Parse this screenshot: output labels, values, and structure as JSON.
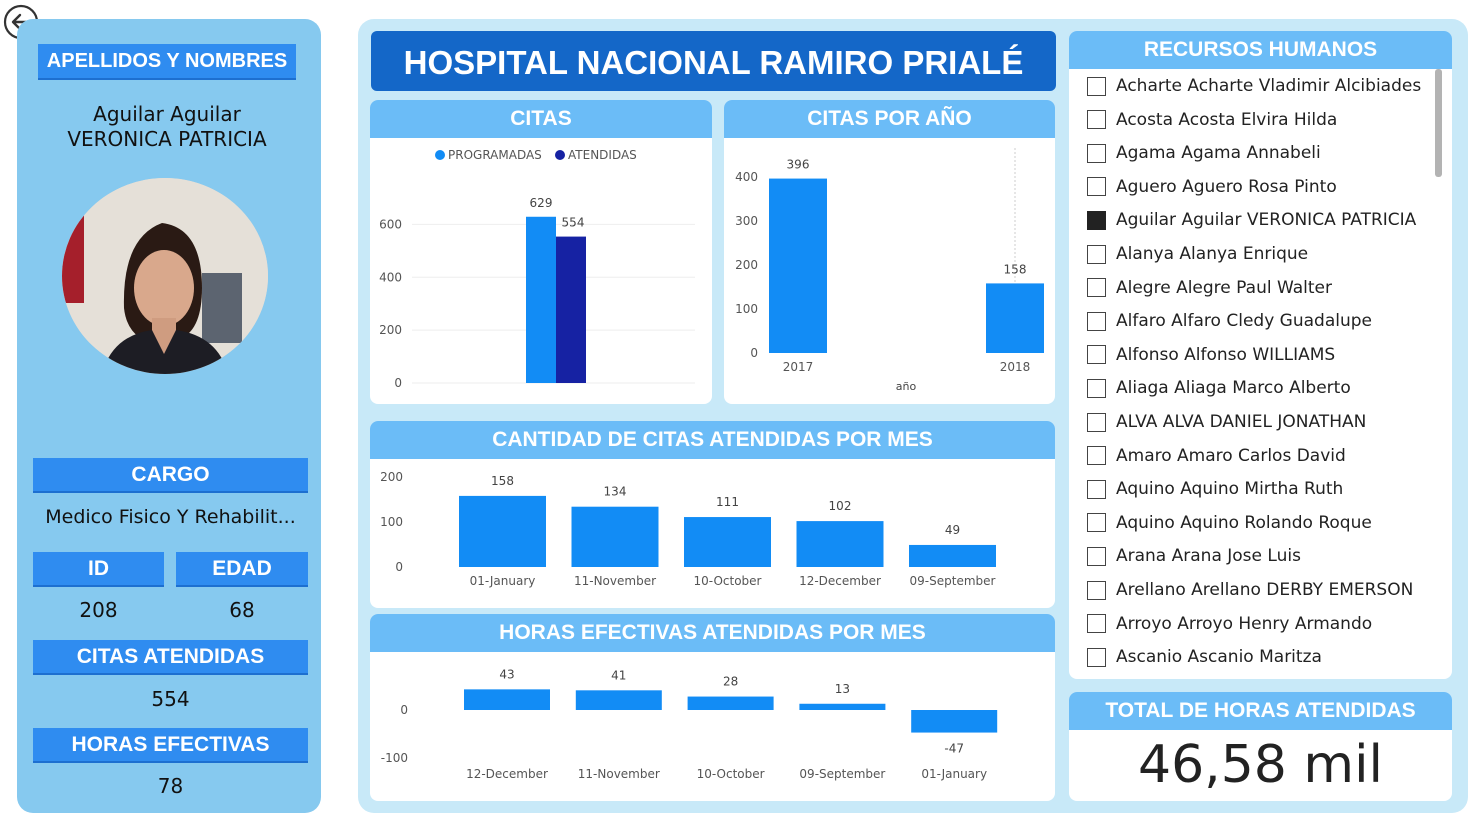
{
  "nav": {
    "back_icon": "back-arrow-icon"
  },
  "profile": {
    "name_header": "APELLIDOS Y NOMBRES",
    "name_line1": "Aguilar Aguilar",
    "name_line2": "VERONICA PATRICIA",
    "cargo_header": "CARGO",
    "cargo_value": "Medico Fisico Y Rehabilit...",
    "id_header": "ID",
    "id_value": "208",
    "edad_header": "EDAD",
    "edad_value": "68",
    "citas_header": "CITAS ATENDIDAS",
    "citas_value": "554",
    "horas_header": "HORAS EFECTIVAS",
    "horas_value": "78"
  },
  "title": "HOSPITAL NACIONAL RAMIRO PRIALÉ",
  "colors": {
    "bar": "#128cf5",
    "programadas": "#128cf5",
    "atendidas": "#1622a3",
    "header": "#6bbcf7",
    "title": "#1467c8",
    "panel": "#86c9ef"
  },
  "chart_data": [
    {
      "id": "citas",
      "title": "CITAS",
      "type": "bar",
      "legend_position": "top",
      "categories": [
        ""
      ],
      "series": [
        {
          "name": "PROGRAMADAS",
          "values": [
            629
          ]
        },
        {
          "name": "ATENDIDAS",
          "values": [
            554
          ]
        }
      ],
      "data_labels": [
        "629",
        "554"
      ],
      "yticks": [
        "600",
        "400",
        "200",
        "0"
      ],
      "ylim": [
        0,
        700
      ]
    },
    {
      "id": "citas_por_anio",
      "title": "CITAS POR AÑO",
      "type": "bar",
      "xlabel": "año",
      "categories": [
        "2017",
        "2018"
      ],
      "values": [
        396,
        158
      ],
      "data_labels": [
        "396",
        "158"
      ],
      "yticks": [
        "400",
        "300",
        "200",
        "100",
        "0"
      ],
      "ylim": [
        0,
        420
      ]
    },
    {
      "id": "citas_por_mes",
      "title": "CANTIDAD DE CITAS ATENDIDAS POR MES",
      "type": "bar",
      "categories": [
        "01-January",
        "11-November",
        "10-October",
        "12-December",
        "09-September"
      ],
      "values": [
        158,
        134,
        111,
        102,
        49
      ],
      "data_labels": [
        "158",
        "134",
        "111",
        "102",
        "49"
      ],
      "yticks": [
        "200",
        "100",
        "0"
      ],
      "ylim": [
        0,
        200
      ]
    },
    {
      "id": "horas_por_mes",
      "title": "HORAS EFECTIVAS ATENDIDAS POR MES",
      "type": "bar",
      "categories": [
        "12-December",
        "11-November",
        "10-October",
        "09-September",
        "01-January"
      ],
      "values": [
        43,
        41,
        28,
        13,
        -47
      ],
      "data_labels": [
        "43",
        "41",
        "28",
        "13",
        "-47"
      ],
      "yticks": [
        "0",
        "-100"
      ],
      "ylim": [
        -110,
        50
      ]
    }
  ],
  "rrhh": {
    "title": "RECURSOS HUMANOS",
    "items": [
      {
        "label": "Acharte Acharte Vladimir Alcibiades",
        "checked": false
      },
      {
        "label": "Acosta Acosta Elvira Hilda",
        "checked": false
      },
      {
        "label": "Agama Agama Annabeli",
        "checked": false
      },
      {
        "label": "Aguero Aguero Rosa Pinto",
        "checked": false
      },
      {
        "label": "Aguilar Aguilar VERONICA PATRICIA",
        "checked": true
      },
      {
        "label": "Alanya Alanya Enrique",
        "checked": false
      },
      {
        "label": "Alegre Alegre Paul Walter",
        "checked": false
      },
      {
        "label": "Alfaro Alfaro Cledy Guadalupe",
        "checked": false
      },
      {
        "label": "Alfonso Alfonso WILLIAMS",
        "checked": false
      },
      {
        "label": "Aliaga Aliaga Marco Alberto",
        "checked": false
      },
      {
        "label": "ALVA ALVA DANIEL JONATHAN",
        "checked": false
      },
      {
        "label": "Amaro Amaro Carlos David",
        "checked": false
      },
      {
        "label": "Aquino Aquino Mirtha Ruth",
        "checked": false
      },
      {
        "label": "Aquino Aquino Rolando Roque",
        "checked": false
      },
      {
        "label": "Arana Arana Jose Luis",
        "checked": false
      },
      {
        "label": "Arellano Arellano DERBY EMERSON",
        "checked": false
      },
      {
        "label": "Arroyo Arroyo Henry Armando",
        "checked": false
      },
      {
        "label": "Ascanio Ascanio Maritza",
        "checked": false
      }
    ]
  },
  "total": {
    "title": "TOTAL DE HORAS ATENDIDAS",
    "value": "46,58 mil"
  }
}
